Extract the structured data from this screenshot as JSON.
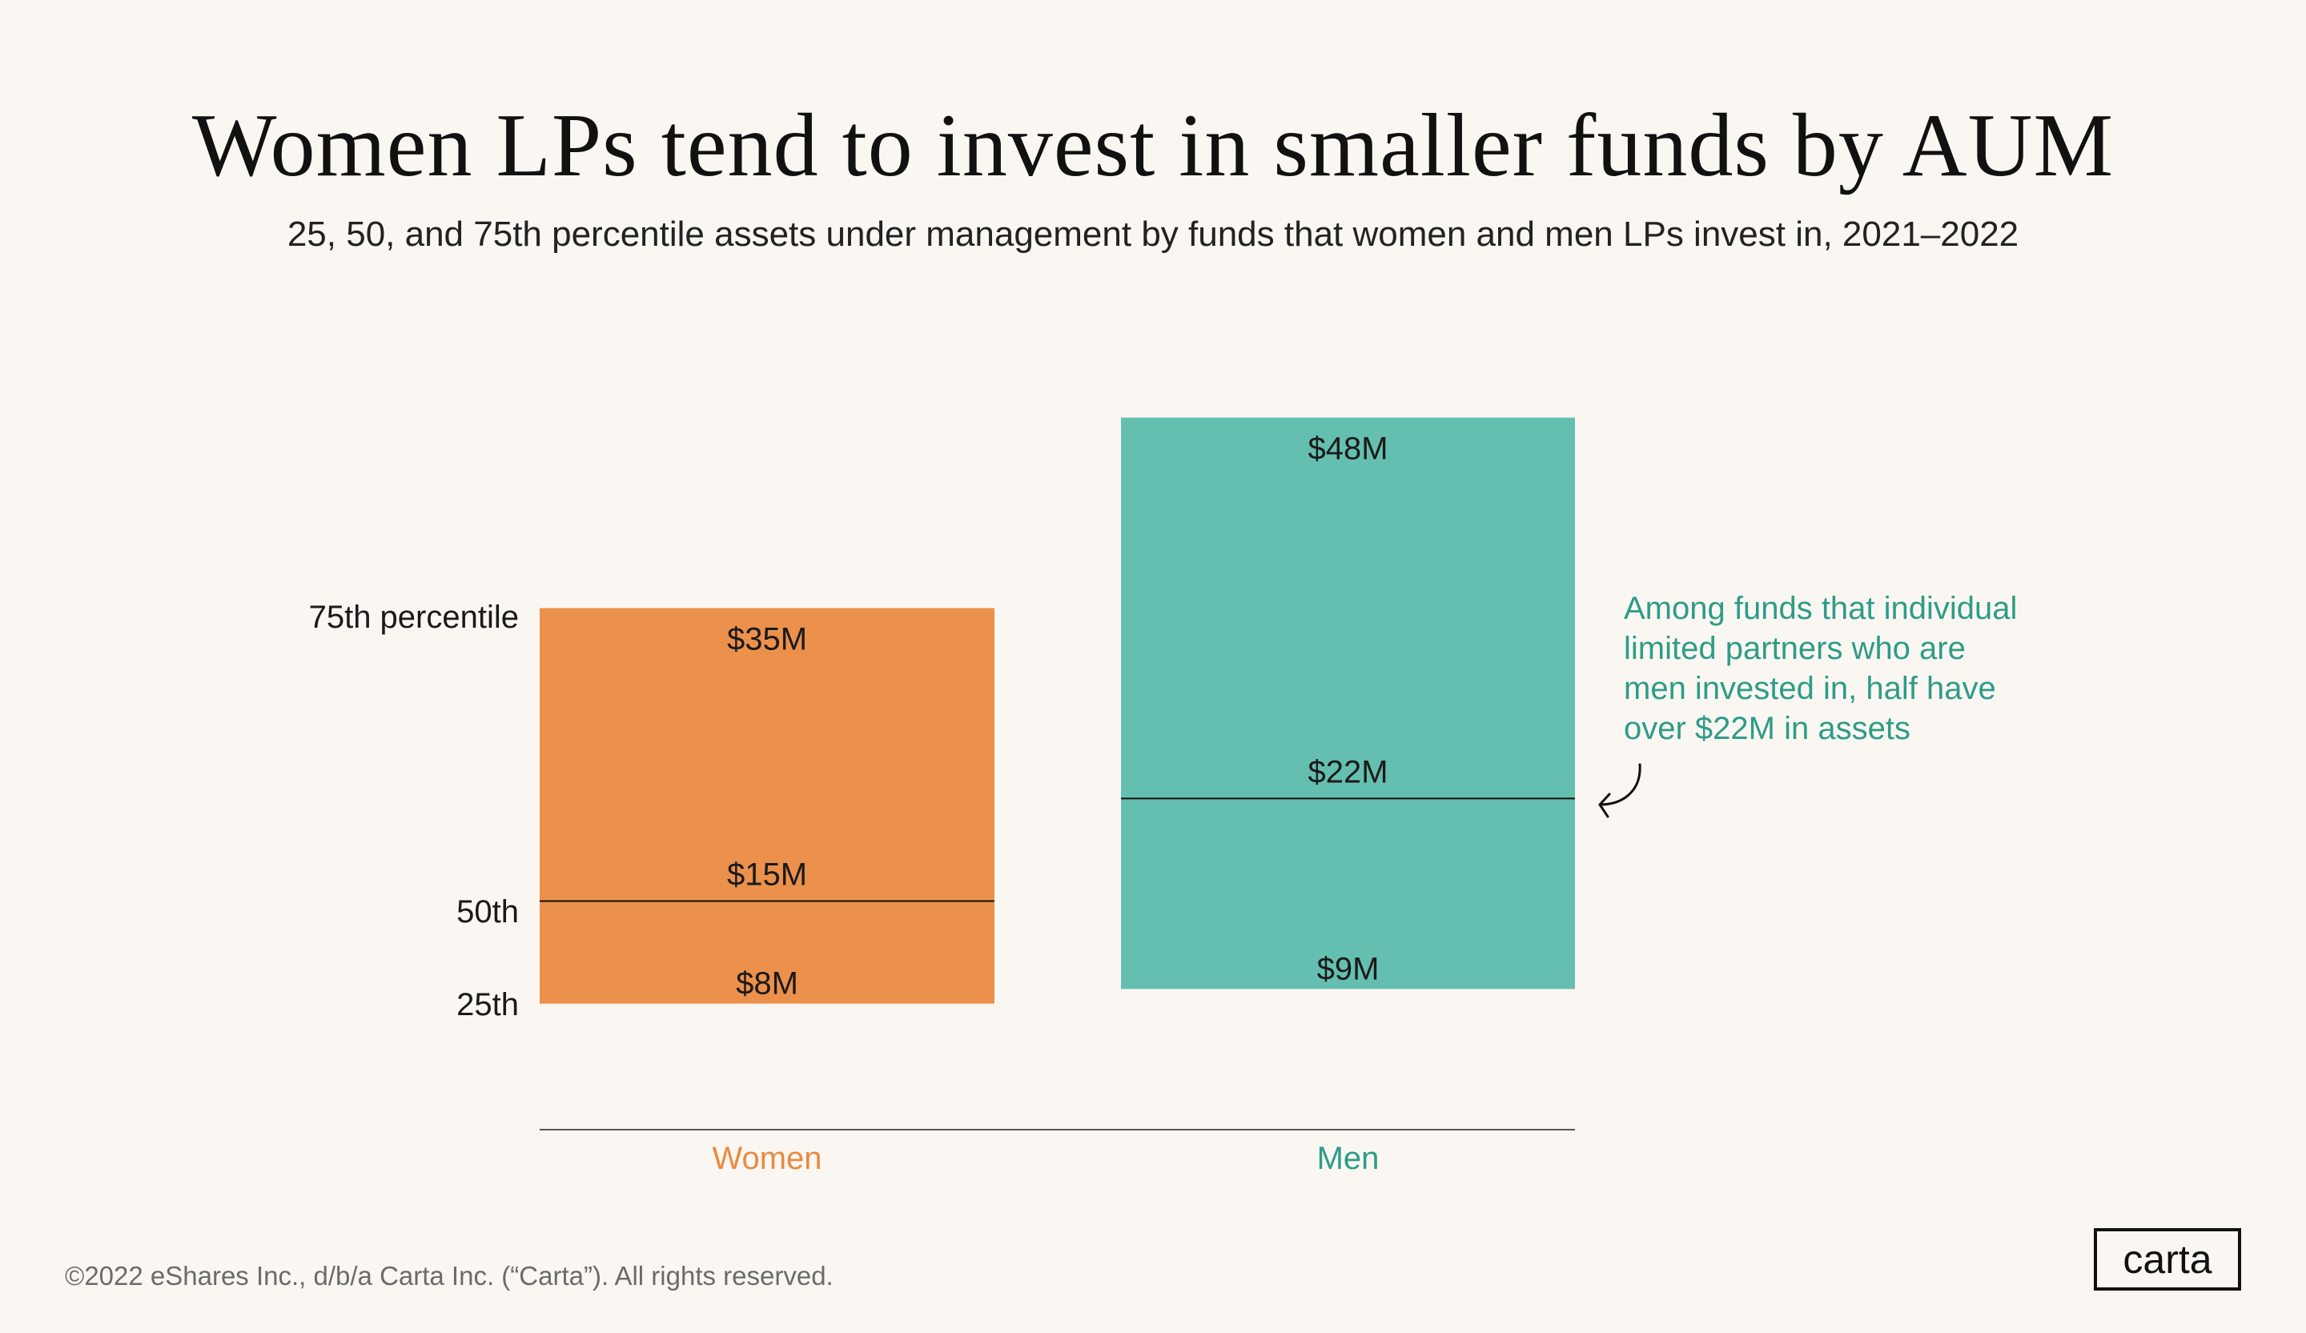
{
  "chart_data": {
    "type": "bar",
    "title": "Women LPs tend to invest in smaller funds by AUM",
    "subtitle": "25, 50, and 75th percentile assets under management by funds that women and men LPs invest in, 2021–2022",
    "categories": [
      "Women",
      "Men"
    ],
    "percentile_labels": [
      "75th percentile",
      "50th",
      "25th"
    ],
    "series": [
      {
        "category": "Women",
        "p25": 8,
        "p50": 15,
        "p75": 35,
        "labels": {
          "p25": "$8M",
          "p50": "$15M",
          "p75": "$35M"
        },
        "color": "#EC914C",
        "label_color": "#EA8A3F"
      },
      {
        "category": "Men",
        "p25": 9,
        "p50": 22,
        "p75": 48,
        "labels": {
          "p25": "$9M",
          "p50": "$22M",
          "p75": "$48M"
        },
        "color": "#65BFB0",
        "label_color": "#2E9C87"
      }
    ],
    "unit": "$M",
    "annotation": [
      "Among funds that individual",
      "limited partners who are",
      "men invested in, half have",
      "over $22M in assets"
    ],
    "grid": false
  },
  "footer": "©2022 eShares Inc., d/b/a Carta Inc. (“Carta”). All rights reserved.",
  "logo": "carta"
}
